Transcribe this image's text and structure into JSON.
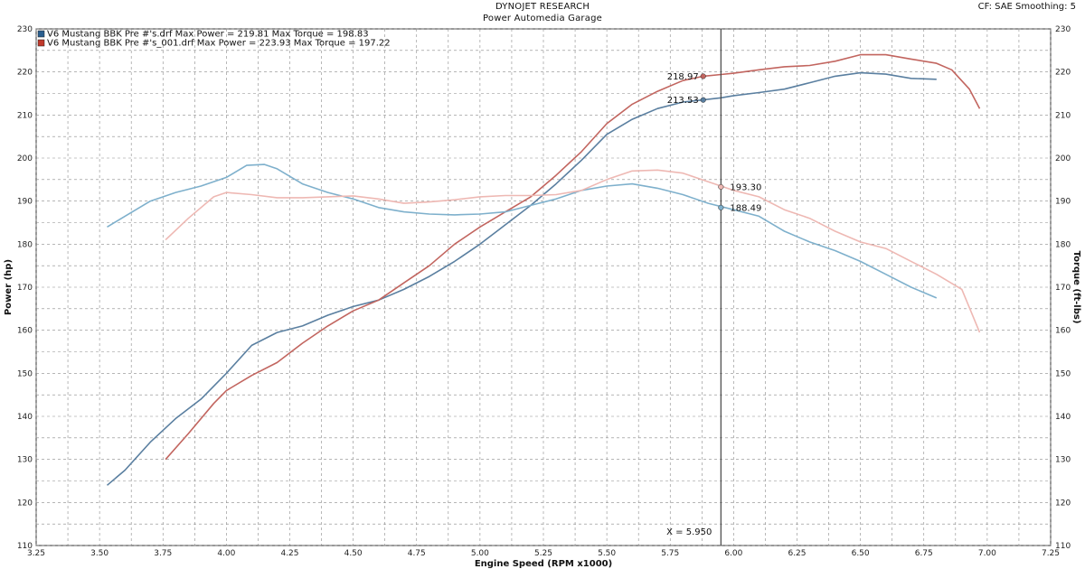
{
  "header": {
    "title": "DYNOJET RESEARCH",
    "subtitle": "Power Automedia Garage",
    "cf": "CF: SAE  Smoothing: 5"
  },
  "chart_data": {
    "type": "line",
    "xlabel": "Engine Speed (RPM x1000)",
    "ylabel_left": "Power (hp)",
    "ylabel_right": "Torque (ft-lbs)",
    "xlim": [
      3.25,
      7.25
    ],
    "ylim": [
      110,
      230
    ],
    "x_ticks": [
      "3.25",
      "3.50",
      "3.75",
      "4.00",
      "4.25",
      "4.50",
      "4.75",
      "5.00",
      "5.25",
      "5.50",
      "5.75",
      "6.00",
      "6.25",
      "6.50",
      "6.75",
      "7.00",
      "7.25"
    ],
    "y_ticks": [
      "110",
      "120",
      "130",
      "140",
      "150",
      "160",
      "170",
      "180",
      "190",
      "200",
      "210",
      "220",
      "230"
    ],
    "grid": true,
    "legend": [
      {
        "text": "V6 Mustang BBK Pre #'s.drf Max Power = 219.81     Max Torque = 198.83",
        "color": "#2a5f8f"
      },
      {
        "text": "V6 Mustang BBK Pre #'s_001.drf Max Power = 223.93     Max Torque = 197.22",
        "color": "#c0392b"
      }
    ],
    "cursor": {
      "x": 5.95,
      "label": "X = 5.950"
    },
    "series": [
      {
        "name": "V6 Mustang BBK Pre #'s.drf",
        "kind": "power",
        "color": "#5a7fa0",
        "x": [
          3.53,
          3.6,
          3.7,
          3.8,
          3.9,
          4.0,
          4.1,
          4.2,
          4.3,
          4.4,
          4.5,
          4.6,
          4.7,
          4.8,
          4.9,
          5.0,
          5.1,
          5.2,
          5.3,
          5.4,
          5.5,
          5.6,
          5.7,
          5.8,
          5.88,
          5.95,
          6.0,
          6.1,
          6.2,
          6.3,
          6.4,
          6.5,
          6.6,
          6.7,
          6.8
        ],
        "values": [
          124,
          127.5,
          134,
          139.5,
          144,
          150,
          156.5,
          159.5,
          161,
          163.5,
          165.5,
          167,
          169.5,
          172.5,
          176,
          180,
          184.5,
          189,
          194,
          199.5,
          205.5,
          209,
          211.5,
          213,
          213.5,
          214,
          214.5,
          215.2,
          216,
          217.5,
          219,
          219.8,
          219.5,
          218.5,
          218.3
        ]
      },
      {
        "name": "V6 Mustang BBK Pre #'s_001.drf",
        "kind": "power",
        "color": "#c2655f",
        "x": [
          3.76,
          3.85,
          3.95,
          4.0,
          4.1,
          4.2,
          4.3,
          4.4,
          4.5,
          4.6,
          4.7,
          4.8,
          4.9,
          5.0,
          5.1,
          5.2,
          5.3,
          5.4,
          5.5,
          5.6,
          5.7,
          5.8,
          5.88,
          5.95,
          6.0,
          6.1,
          6.2,
          6.3,
          6.4,
          6.5,
          6.6,
          6.7,
          6.8,
          6.86,
          6.93,
          6.97
        ],
        "values": [
          130,
          136,
          143,
          146,
          149.5,
          152.5,
          157,
          161,
          164.5,
          167,
          171,
          175,
          180,
          184,
          187.5,
          191,
          196,
          201.5,
          208,
          212.5,
          215.5,
          218,
          219,
          219.4,
          219.7,
          220.5,
          221.2,
          221.5,
          222.5,
          224,
          224,
          223,
          222,
          220.5,
          216,
          211.5
        ]
      },
      {
        "name": "V6 Mustang BBK Pre #'s.drf",
        "kind": "torque",
        "color": "#7eb0cc",
        "x": [
          3.53,
          3.6,
          3.7,
          3.8,
          3.9,
          4.0,
          4.08,
          4.15,
          4.2,
          4.3,
          4.4,
          4.5,
          4.6,
          4.7,
          4.8,
          4.9,
          5.0,
          5.1,
          5.2,
          5.3,
          5.4,
          5.5,
          5.6,
          5.7,
          5.8,
          5.9,
          6.0,
          6.1,
          6.2,
          6.3,
          6.4,
          6.5,
          6.6,
          6.7,
          6.8
        ],
        "values": [
          184,
          186.5,
          190,
          192,
          193.5,
          195.5,
          198.3,
          198.5,
          197.5,
          194,
          192,
          190.5,
          188.5,
          187.5,
          187,
          186.8,
          187,
          187.5,
          189,
          190.5,
          192.5,
          193.5,
          194,
          193,
          191.5,
          189.5,
          188,
          186.5,
          183,
          180.5,
          178.5,
          176,
          173,
          170,
          167.5
        ]
      },
      {
        "name": "V6 Mustang BBK Pre #'s_001.drf",
        "kind": "torque",
        "color": "#eeb8b3",
        "x": [
          3.76,
          3.85,
          3.95,
          4.0,
          4.1,
          4.2,
          4.3,
          4.4,
          4.5,
          4.6,
          4.7,
          4.8,
          4.9,
          5.0,
          5.1,
          5.2,
          5.3,
          5.4,
          5.5,
          5.6,
          5.7,
          5.8,
          5.9,
          6.0,
          6.1,
          6.2,
          6.3,
          6.4,
          6.5,
          6.6,
          6.7,
          6.8,
          6.9,
          6.97
        ],
        "values": [
          181,
          186,
          191,
          192,
          191.5,
          190.8,
          190.8,
          191,
          191.2,
          190.5,
          189.5,
          189.8,
          190.3,
          191,
          191.3,
          191.3,
          191.5,
          192.5,
          195,
          197,
          197.2,
          196.5,
          194.5,
          192.5,
          191,
          188,
          186,
          183,
          180.5,
          179,
          176,
          173,
          169.5,
          159.5
        ]
      }
    ],
    "markers": [
      {
        "series": 1,
        "x": 5.88,
        "y": 219,
        "label": "218.97",
        "side": "left"
      },
      {
        "series": 0,
        "x": 5.88,
        "y": 213.5,
        "label": "213.53",
        "side": "left"
      },
      {
        "series": 3,
        "x": 5.95,
        "y": 193.3,
        "label": "193.30",
        "side": "right"
      },
      {
        "series": 2,
        "x": 5.95,
        "y": 188.5,
        "label": "188.49",
        "side": "right"
      }
    ]
  }
}
